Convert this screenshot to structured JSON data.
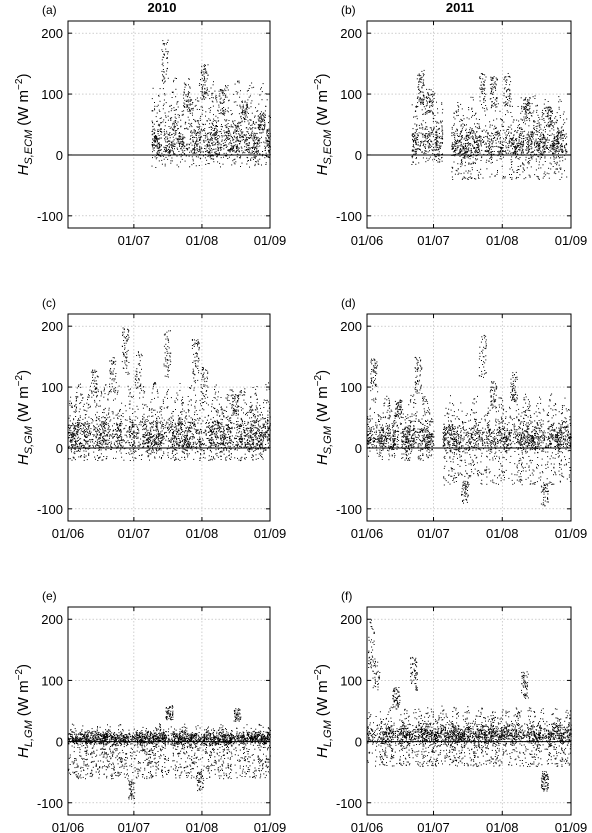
{
  "figure": {
    "col_titles": [
      "2010",
      "2011"
    ]
  },
  "chart_data": [
    {
      "type": "scatter",
      "panel_label": "(a)",
      "ylabel_var": "H",
      "ylabel_sub": "S,ECM",
      "ylabel_unit": "(W m",
      "ylabel_exp": "−2",
      "ylabel_close": ")",
      "x_domain": [
        "2010-06-01",
        "2010-09-01"
      ],
      "xticks": [
        "01/07",
        "01/08",
        "01/09"
      ],
      "xtick_days": [
        30,
        61,
        92
      ],
      "ylim": [
        -120,
        220
      ],
      "yticks": [
        -100,
        0,
        100,
        200
      ],
      "grid": true,
      "zero_line": true,
      "segments": [
        {
          "start": 38,
          "end": 92,
          "max": 130,
          "min": -20,
          "peaks": [
            [
              44,
              190
            ],
            [
              54,
              120
            ],
            [
              62,
              150
            ],
            [
              70,
              110
            ],
            [
              80,
              90
            ],
            [
              88,
              70
            ]
          ]
        }
      ]
    },
    {
      "type": "scatter",
      "panel_label": "(b)",
      "ylabel_var": "H",
      "ylabel_sub": "S,ECM",
      "ylabel_unit": "(W m",
      "ylabel_exp": "−2",
      "ylabel_close": ")",
      "x_domain": [
        "2011-06-01",
        "2011-09-01"
      ],
      "xticks": [
        "01/06",
        "01/07",
        "01/08",
        "01/09"
      ],
      "xtick_days": [
        0,
        30,
        61,
        92
      ],
      "ylim": [
        -120,
        220
      ],
      "yticks": [
        -100,
        0,
        100,
        200
      ],
      "grid": true,
      "zero_line": true,
      "segments": [
        {
          "start": 20,
          "end": 34,
          "max": 110,
          "min": -15,
          "peaks": [
            [
              24,
              140
            ],
            [
              28,
              110
            ]
          ]
        },
        {
          "start": 38,
          "end": 90,
          "max": 100,
          "min": -40,
          "peaks": [
            [
              52,
              135
            ],
            [
              57,
              130
            ],
            [
              63,
              135
            ],
            [
              72,
              95
            ],
            [
              82,
              80
            ]
          ]
        }
      ]
    },
    {
      "type": "scatter",
      "panel_label": "(c)",
      "ylabel_var": "H",
      "ylabel_sub": "S,GM",
      "ylabel_unit": "(W m",
      "ylabel_exp": "−2",
      "ylabel_close": ")",
      "x_domain": [
        "2010-06-01",
        "2010-09-01"
      ],
      "xticks": [
        "01/06",
        "01/07",
        "01/08",
        "01/09"
      ],
      "xtick_days": [
        0,
        30,
        61,
        92
      ],
      "ylim": [
        -120,
        220
      ],
      "yticks": [
        -100,
        0,
        100,
        200
      ],
      "grid": true,
      "zero_line": true,
      "segments": [
        {
          "start": 0,
          "end": 92,
          "max": 110,
          "min": -20,
          "peaks": [
            [
              12,
              130
            ],
            [
              20,
              150
            ],
            [
              26,
              200
            ],
            [
              32,
              160
            ],
            [
              45,
              195
            ],
            [
              58,
              180
            ],
            [
              62,
              135
            ],
            [
              76,
              90
            ]
          ]
        }
      ]
    },
    {
      "type": "scatter",
      "panel_label": "(d)",
      "ylabel_var": "H",
      "ylabel_sub": "S,GM",
      "ylabel_unit": "(W m",
      "ylabel_exp": "−2",
      "ylabel_close": ")",
      "x_domain": [
        "2011-06-01",
        "2011-09-01"
      ],
      "xticks": [
        "01/06",
        "01/07",
        "01/08",
        "01/09"
      ],
      "xtick_days": [
        0,
        30,
        61,
        92
      ],
      "ylim": [
        -120,
        220
      ],
      "yticks": [
        -100,
        0,
        100,
        200
      ],
      "grid": true,
      "zero_line": true,
      "segments": [
        {
          "start": 0,
          "end": 30,
          "max": 90,
          "min": -20,
          "peaks": [
            [
              3,
              150
            ],
            [
              14,
              80
            ],
            [
              23,
              150
            ]
          ]
        },
        {
          "start": 34,
          "end": 92,
          "max": 90,
          "min": -60,
          "peaks": [
            [
              44,
              -90
            ],
            [
              52,
              190
            ],
            [
              57,
              110
            ],
            [
              66,
              125
            ],
            [
              80,
              -95
            ]
          ]
        }
      ]
    },
    {
      "type": "scatter",
      "panel_label": "(e)",
      "ylabel_var": "H",
      "ylabel_sub": "L,GM",
      "ylabel_unit": "(W m",
      "ylabel_exp": "−2",
      "ylabel_close": ")",
      "x_domain": [
        "2010-06-01",
        "2010-09-01"
      ],
      "xticks": [
        "01/06",
        "01/07",
        "01/08",
        "01/09"
      ],
      "xtick_days": [
        0,
        30,
        61,
        92
      ],
      "ylim": [
        -120,
        220
      ],
      "yticks": [
        -100,
        0,
        100,
        200
      ],
      "grid": true,
      "zero_line": true,
      "segments": [
        {
          "start": 0,
          "end": 92,
          "max": 30,
          "min": -60,
          "peaks": [
            [
              29,
              -100
            ],
            [
              46,
              60
            ],
            [
              60,
              -80
            ],
            [
              77,
              55
            ]
          ]
        }
      ]
    },
    {
      "type": "scatter",
      "panel_label": "(f)",
      "ylabel_var": "H",
      "ylabel_sub": "L,GM",
      "ylabel_unit": "(W m",
      "ylabel_exp": "−2",
      "ylabel_close": ")",
      "x_domain": [
        "2011-06-01",
        "2011-09-01"
      ],
      "xticks": [
        "01/06",
        "01/07",
        "01/08",
        "01/09"
      ],
      "xtick_days": [
        0,
        30,
        61,
        92
      ],
      "ylim": [
        -120,
        220
      ],
      "yticks": [
        -100,
        0,
        100,
        200
      ],
      "grid": true,
      "zero_line": true,
      "segments": [
        {
          "start": 0,
          "end": 92,
          "max": 60,
          "min": -40,
          "peaks": [
            [
              2,
              200
            ],
            [
              4,
              140
            ],
            [
              13,
              90
            ],
            [
              21,
              140
            ],
            [
              71,
              115
            ],
            [
              80,
              -80
            ]
          ]
        }
      ]
    }
  ]
}
